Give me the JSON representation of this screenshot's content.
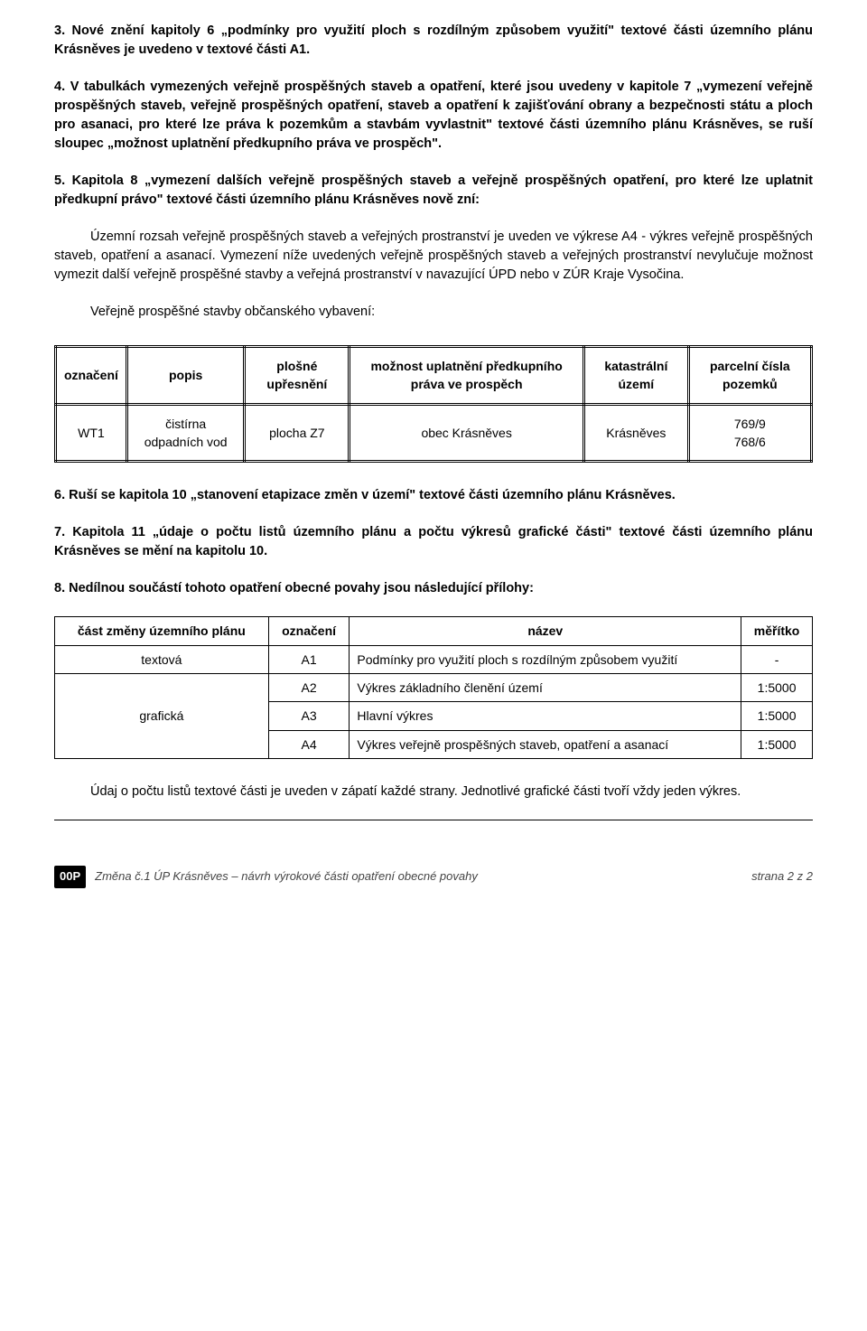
{
  "s3": {
    "text": "3. Nové znění kapitoly 6 „podmínky pro využití ploch s rozdílným způsobem využití\" textové části územního plánu Krásněves je uvedeno v textové části A1."
  },
  "s4": {
    "text": "4. V tabulkách vymezených veřejně prospěšných staveb a opatření, které jsou uvedeny v kapitole 7 „vymezení veřejně prospěšných staveb, veřejně prospěšných opatření, staveb a opatření k zajišťování obrany a bezpečnosti státu a ploch pro asanaci, pro které lze práva k pozemkům a stavbám vyvlastnit\" textové části územního plánu Krásněves, se ruší sloupec „možnost uplatnění předkupního práva ve prospěch\"."
  },
  "s5": {
    "lead": "5. Kapitola 8 „vymezení dalších veřejně prospěšných staveb a veřejně prospěšných opatření, pro které lze uplatnit předkupní právo\" textové části územního plánu Krásněves nově zní:",
    "p1": "Územní rozsah veřejně prospěšných staveb a veřejných prostranství je uveden ve výkrese A4 - výkres veřejně prospěšných staveb, opatření a asanací. Vymezení níže uvedených veřejně prospěšných staveb a veřejných prostranství nevylučuje možnost vymezit další veřejně prospěšné stavby a veřejná prostranství v navazující ÚPD nebo v ZÚR Kraje Vysočina.",
    "p2": "Veřejně prospěšné stavby občanského vybavení:"
  },
  "table1": {
    "headers": [
      "označení",
      "popis",
      "plošné upřesnění",
      "možnost uplatnění předkupního práva ve prospěch",
      "katastrální území",
      "parcelní čísla pozemků"
    ],
    "row": [
      "WT1",
      "čistírna odpadních vod",
      "plocha Z7",
      "obec Krásněves",
      "Krásněves",
      "769/9\n768/6"
    ]
  },
  "s6": {
    "text": "6. Ruší se kapitola 10 „stanovení etapizace změn v území\" textové části územního plánu Krásněves."
  },
  "s7": {
    "text": "7. Kapitola 11 „údaje o počtu listů územního plánu a počtu výkresů grafické části\" textové části územního plánu Krásněves se mění na kapitolu 10."
  },
  "s8": {
    "text": "8. Nedílnou součástí tohoto opatření obecné povahy jsou následující přílohy:"
  },
  "table2": {
    "headers": [
      "část změny územního plánu",
      "označení",
      "název",
      "měřítko"
    ],
    "rows": [
      [
        "textová",
        "A1",
        "Podmínky pro využití ploch s rozdílným způsobem využití",
        "-"
      ],
      [
        "grafická",
        "A2",
        "Výkres základního členění území",
        "1:5000"
      ],
      [
        "",
        "A3",
        "Hlavní výkres",
        "1:5000"
      ],
      [
        "",
        "A4",
        "Výkres veřejně prospěšných staveb, opatření a asanací",
        "1:5000"
      ]
    ],
    "rowspan_label": "grafická"
  },
  "closing": {
    "text": "Údaj o počtu listů textové části je uveden v zápatí každé strany. Jednotlivé grafické části tvoří vždy jeden výkres."
  },
  "footer": {
    "badge": "00P",
    "left": "Změna č.1 ÚP Krásněves – návrh výrokové části opatření obecné povahy",
    "right": "strana 2 z 2"
  }
}
